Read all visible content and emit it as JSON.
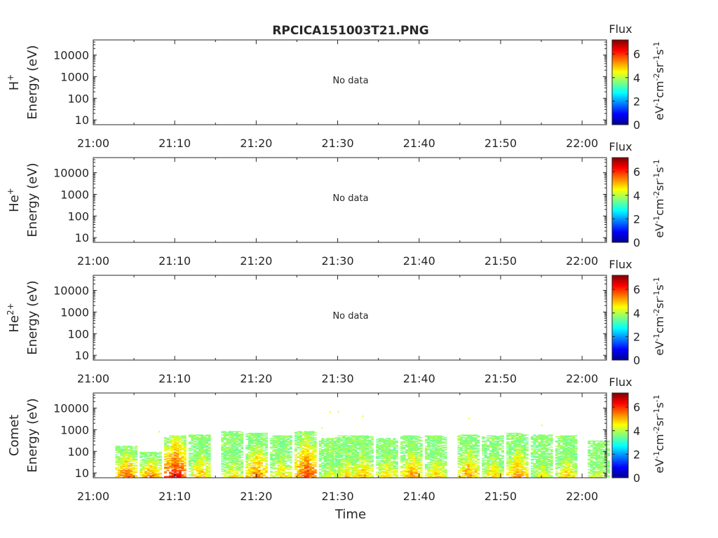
{
  "title": "RPCICA151003T21.PNG",
  "xlabel": "Time",
  "x_ticks": [
    "21:00",
    "21:10",
    "21:20",
    "21:30",
    "21:40",
    "21:50",
    "22:00"
  ],
  "y_ticks": [
    "10",
    "100",
    "1000",
    "10000"
  ],
  "colorbar": {
    "title": "Flux",
    "ticks": [
      "0",
      "2",
      "4",
      "6"
    ],
    "label_parts": [
      "eV",
      "-1",
      "cm",
      "-2",
      "sr",
      "-1",
      "s",
      "-1"
    ],
    "range": [
      0,
      7.2
    ],
    "colormap": "jet"
  },
  "no_data_text": "No data",
  "chart_data": [
    {
      "type": "heatmap",
      "species": "H",
      "species_sup": "+",
      "ylabel": "Energy (eV)",
      "yscale": "log",
      "ylim": [
        6,
        50000
      ],
      "xlim": [
        "21:00",
        "22:03"
      ],
      "has_data": false
    },
    {
      "type": "heatmap",
      "species": "He",
      "species_sup": "+",
      "ylabel": "Energy (eV)",
      "yscale": "log",
      "ylim": [
        6,
        50000
      ],
      "xlim": [
        "21:00",
        "22:03"
      ],
      "has_data": false
    },
    {
      "type": "heatmap",
      "species": "He",
      "species_sup": "2+",
      "ylabel": "Energy (eV)",
      "yscale": "log",
      "ylim": [
        6,
        50000
      ],
      "xlim": [
        "21:00",
        "22:03"
      ],
      "has_data": false
    },
    {
      "type": "heatmap",
      "species": "Comet",
      "species_sup": "",
      "ylabel": "Energy (eV)",
      "yscale": "log",
      "ylim": [
        6,
        50000
      ],
      "xlim": [
        "21:00",
        "22:03"
      ],
      "has_data": true,
      "bursts": [
        {
          "t": "21:04",
          "emax": 180,
          "peak": 6.2
        },
        {
          "t": "21:07",
          "emax": 90,
          "peak": 6.0
        },
        {
          "t": "21:10",
          "emax": 500,
          "peak": 6.8
        },
        {
          "t": "21:13",
          "emax": 600,
          "peak": 5.6
        },
        {
          "t": "21:17",
          "emax": 800,
          "peak": 5.2
        },
        {
          "t": "21:20",
          "emax": 700,
          "peak": 6.0
        },
        {
          "t": "21:23",
          "emax": 500,
          "peak": 5.4
        },
        {
          "t": "21:26",
          "emax": 800,
          "peak": 6.4
        },
        {
          "t": "21:29",
          "emax": 400,
          "peak": 5.0
        },
        {
          "t": "21:31",
          "emax": 500,
          "peak": 5.4
        },
        {
          "t": "21:33",
          "emax": 500,
          "peak": 5.6
        },
        {
          "t": "21:36",
          "emax": 400,
          "peak": 5.4
        },
        {
          "t": "21:39",
          "emax": 500,
          "peak": 5.8
        },
        {
          "t": "21:42",
          "emax": 500,
          "peak": 5.4
        },
        {
          "t": "21:46",
          "emax": 600,
          "peak": 5.8
        },
        {
          "t": "21:49",
          "emax": 500,
          "peak": 5.4
        },
        {
          "t": "21:52",
          "emax": 700,
          "peak": 5.8
        },
        {
          "t": "21:55",
          "emax": 600,
          "peak": 5.0
        },
        {
          "t": "21:58",
          "emax": 500,
          "peak": 5.4
        },
        {
          "t": "22:02",
          "emax": 300,
          "peak": 5.0
        }
      ],
      "sporadic": [
        {
          "t": "21:29",
          "e": 6500,
          "v": 4.3
        },
        {
          "t": "21:30",
          "e": 6800,
          "v": 4.3
        },
        {
          "t": "21:33",
          "e": 4200,
          "v": 4.3
        },
        {
          "t": "21:46",
          "e": 3300,
          "v": 4.3
        },
        {
          "t": "21:55",
          "e": 1600,
          "v": 4.3
        },
        {
          "t": "21:28",
          "e": 1200,
          "v": 4.3
        },
        {
          "t": "21:08",
          "e": 800,
          "v": 4.3
        }
      ]
    }
  ]
}
